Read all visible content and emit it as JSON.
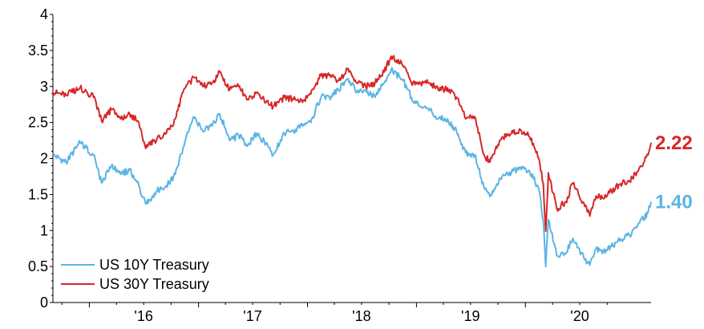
{
  "chart_data": {
    "type": "line",
    "title": "",
    "xlabel": "",
    "ylabel": "",
    "ylim": [
      0,
      4
    ],
    "xlim": [
      "2015-09-01",
      "2021-02-25"
    ],
    "y_ticks": [
      "0",
      "0.5",
      "1",
      "1.5",
      "2",
      "2.5",
      "3",
      "3.5",
      "4"
    ],
    "x_ticks": [
      {
        "label": "'16",
        "date": "2016-01-01"
      },
      {
        "label": "'17",
        "date": "2017-01-01"
      },
      {
        "label": "'18",
        "date": "2018-01-01"
      },
      {
        "label": "'19",
        "date": "2019-01-01"
      },
      {
        "label": "'20",
        "date": "2020-01-01"
      }
    ],
    "grid": false,
    "legend_position": "bottom-left",
    "series": [
      {
        "name": "US 10Y Treasury",
        "color": "#5BB4E5",
        "end_label": "1.40",
        "x": [
          "2015-09-01",
          "2015-10-15",
          "2015-12-01",
          "2016-01-15",
          "2016-02-11",
          "2016-03-15",
          "2016-04-15",
          "2016-05-15",
          "2016-06-15",
          "2016-07-08",
          "2016-08-15",
          "2016-09-15",
          "2016-10-15",
          "2016-11-10",
          "2016-12-15",
          "2017-01-15",
          "2017-02-15",
          "2017-03-13",
          "2017-04-15",
          "2017-05-15",
          "2017-06-15",
          "2017-07-15",
          "2017-08-15",
          "2017-09-08",
          "2017-10-15",
          "2017-11-15",
          "2017-12-15",
          "2018-01-15",
          "2018-02-15",
          "2018-03-15",
          "2018-04-15",
          "2018-05-17",
          "2018-06-15",
          "2018-07-15",
          "2018-08-15",
          "2018-09-15",
          "2018-10-08",
          "2018-11-15",
          "2018-12-15",
          "2019-01-15",
          "2019-02-15",
          "2019-03-15",
          "2019-04-15",
          "2019-05-15",
          "2019-06-15",
          "2019-07-15",
          "2019-08-15",
          "2019-09-04",
          "2019-10-15",
          "2019-11-15",
          "2019-12-15",
          "2020-01-15",
          "2020-02-15",
          "2020-03-01",
          "2020-03-09",
          "2020-03-18",
          "2020-04-15",
          "2020-05-15",
          "2020-06-08",
          "2020-07-15",
          "2020-08-04",
          "2020-08-25",
          "2020-09-15",
          "2020-10-15",
          "2020-11-15",
          "2020-12-15",
          "2021-01-15",
          "2021-02-15",
          "2021-02-25"
        ],
        "values": [
          2.05,
          1.95,
          2.22,
          2.05,
          1.66,
          1.9,
          1.78,
          1.84,
          1.62,
          1.37,
          1.55,
          1.62,
          1.78,
          2.15,
          2.58,
          2.38,
          2.45,
          2.62,
          2.25,
          2.32,
          2.18,
          2.35,
          2.2,
          2.05,
          2.35,
          2.38,
          2.45,
          2.55,
          2.85,
          2.85,
          2.95,
          3.11,
          2.92,
          2.95,
          2.85,
          3.05,
          3.23,
          3.1,
          2.85,
          2.72,
          2.68,
          2.55,
          2.55,
          2.38,
          2.08,
          2.05,
          1.6,
          1.47,
          1.75,
          1.8,
          1.88,
          1.82,
          1.58,
          1.13,
          0.5,
          1.15,
          0.65,
          0.68,
          0.89,
          0.62,
          0.52,
          0.75,
          0.68,
          0.78,
          0.88,
          0.93,
          1.1,
          1.25,
          1.4
        ]
      },
      {
        "name": "US 30Y Treasury",
        "color": "#D62728",
        "end_label": "2.22",
        "x": [
          "2015-09-01",
          "2015-10-15",
          "2015-12-01",
          "2016-01-15",
          "2016-02-11",
          "2016-03-15",
          "2016-04-15",
          "2016-05-15",
          "2016-06-15",
          "2016-07-08",
          "2016-08-15",
          "2016-09-15",
          "2016-10-15",
          "2016-11-10",
          "2016-12-15",
          "2017-01-15",
          "2017-02-15",
          "2017-03-13",
          "2017-04-15",
          "2017-05-15",
          "2017-06-15",
          "2017-07-15",
          "2017-08-15",
          "2017-09-08",
          "2017-10-15",
          "2017-11-15",
          "2017-12-15",
          "2018-01-15",
          "2018-02-15",
          "2018-03-15",
          "2018-04-15",
          "2018-05-17",
          "2018-06-15",
          "2018-07-15",
          "2018-08-15",
          "2018-09-15",
          "2018-10-08",
          "2018-11-15",
          "2018-12-15",
          "2019-01-15",
          "2019-02-15",
          "2019-03-15",
          "2019-04-15",
          "2019-05-15",
          "2019-06-15",
          "2019-07-15",
          "2019-08-15",
          "2019-09-04",
          "2019-10-15",
          "2019-11-15",
          "2019-12-15",
          "2020-01-15",
          "2020-02-15",
          "2020-03-01",
          "2020-03-09",
          "2020-03-18",
          "2020-04-15",
          "2020-05-15",
          "2020-06-08",
          "2020-07-15",
          "2020-08-04",
          "2020-08-25",
          "2020-09-15",
          "2020-10-15",
          "2020-11-15",
          "2020-12-15",
          "2021-01-15",
          "2021-02-15",
          "2021-02-25"
        ],
        "values": [
          2.92,
          2.88,
          2.98,
          2.85,
          2.52,
          2.68,
          2.55,
          2.62,
          2.5,
          2.14,
          2.28,
          2.35,
          2.55,
          2.92,
          3.13,
          3.0,
          3.05,
          3.2,
          2.95,
          3.0,
          2.82,
          2.92,
          2.78,
          2.72,
          2.85,
          2.82,
          2.78,
          2.95,
          3.15,
          3.15,
          3.08,
          3.25,
          3.05,
          3.0,
          3.05,
          3.2,
          3.42,
          3.3,
          3.05,
          3.05,
          3.05,
          2.95,
          2.98,
          2.85,
          2.55,
          2.58,
          2.05,
          1.95,
          2.3,
          2.35,
          2.4,
          2.3,
          2.0,
          1.65,
          0.99,
          1.8,
          1.3,
          1.4,
          1.65,
          1.38,
          1.2,
          1.48,
          1.45,
          1.55,
          1.65,
          1.68,
          1.85,
          2.05,
          2.22
        ]
      }
    ]
  }
}
